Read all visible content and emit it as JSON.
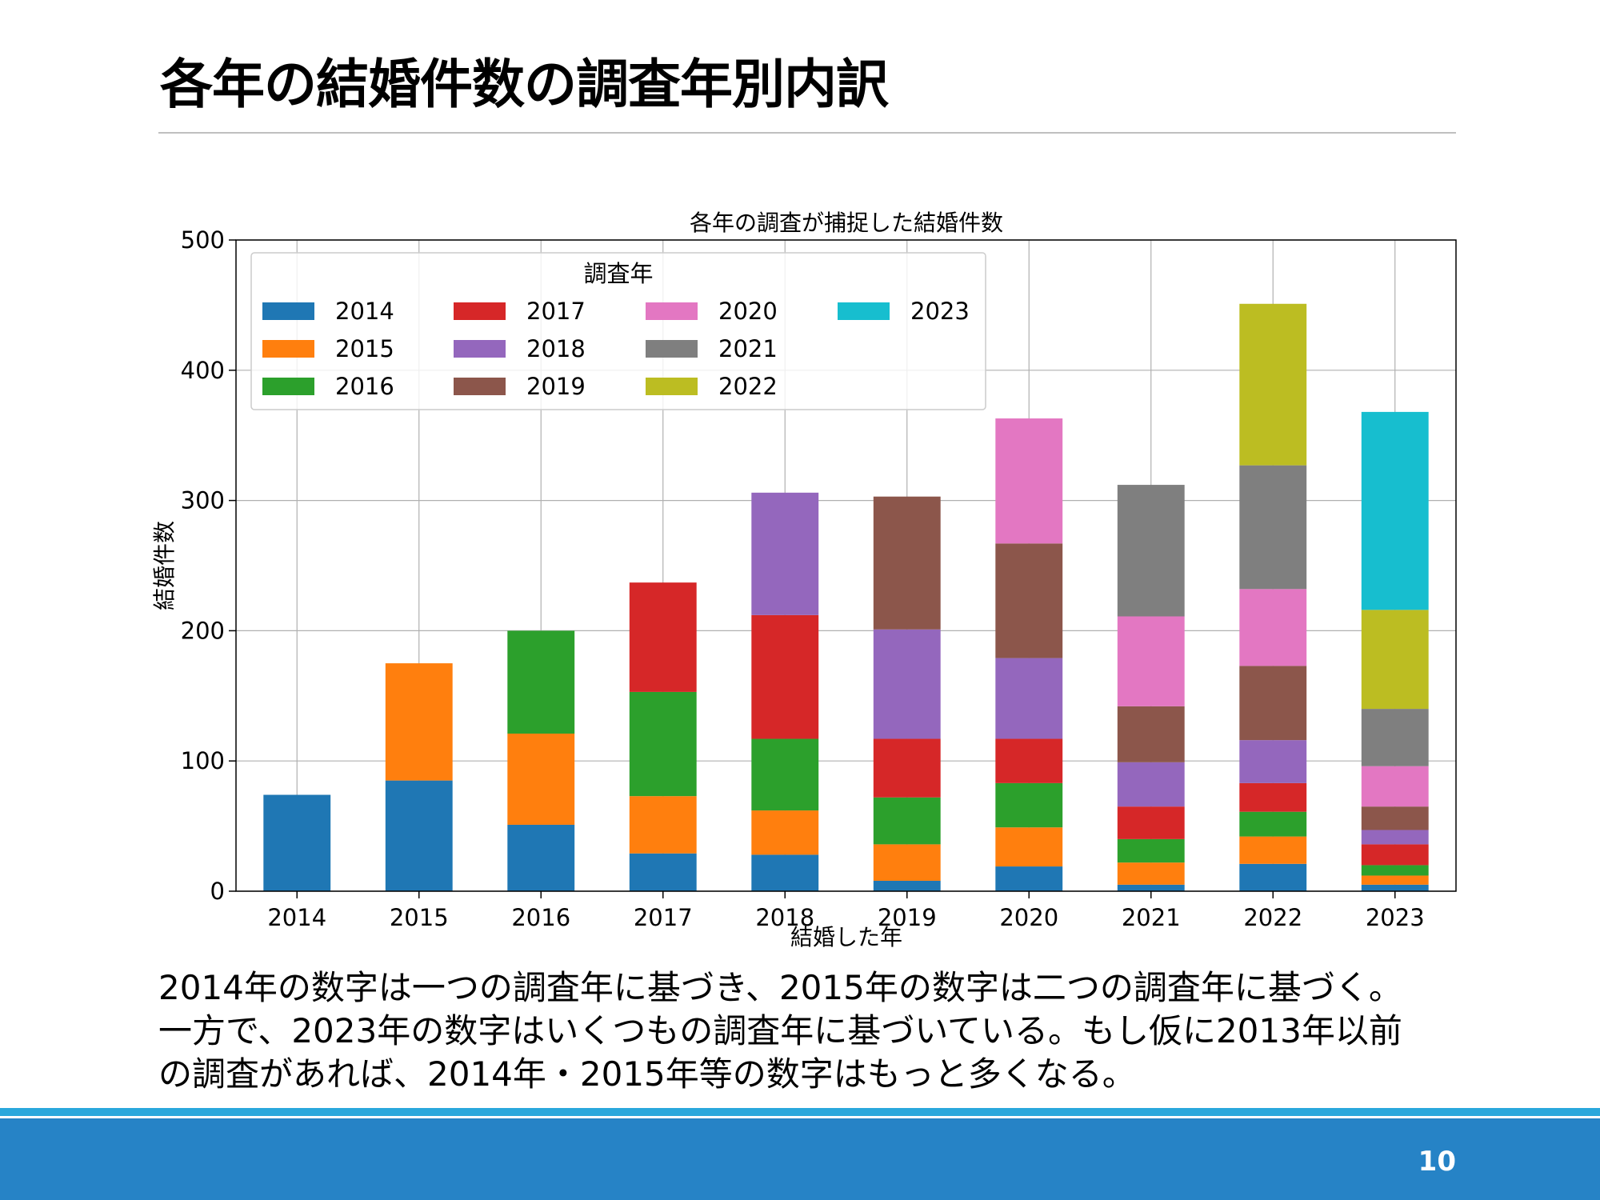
{
  "slide": {
    "title": "各年の結婚件数の調査年別内訳",
    "body_lines": [
      "2014年の数字は一つの調査年に基づき、2015年の数字は二つの調査年に基づく。",
      "一方で、2023年の数字はいくつもの調査年に基づいている。もし仮に2013年以前",
      "の調査があれば、2014年・2015年等の数字はもっと多くなる。"
    ],
    "page_number": "10",
    "footer_colors": {
      "stripe": "#2aa7dc",
      "bar": "#2683c6"
    }
  },
  "chart_data": {
    "type": "bar",
    "stacked": true,
    "title": "各年の調査が捕捉した結婚件数",
    "xlabel": "結婚した年",
    "ylabel": "結婚件数",
    "ylim": [
      0,
      500
    ],
    "yticks": [
      0,
      100,
      200,
      300,
      400,
      500
    ],
    "grid": true,
    "legend": {
      "title": "調査年",
      "placement": "top-left",
      "columns": 4
    },
    "categories": [
      "2014",
      "2015",
      "2016",
      "2017",
      "2018",
      "2019",
      "2020",
      "2021",
      "2022",
      "2023"
    ],
    "series": [
      {
        "name": "2014",
        "color": "#1f77b4",
        "values": [
          74,
          85,
          51,
          29,
          28,
          8,
          19,
          5,
          21,
          5
        ]
      },
      {
        "name": "2015",
        "color": "#ff7f0e",
        "values": [
          0,
          90,
          70,
          44,
          34,
          28,
          30,
          17,
          21,
          7
        ]
      },
      {
        "name": "2016",
        "color": "#2ca02c",
        "values": [
          0,
          0,
          79,
          80,
          55,
          36,
          34,
          18,
          19,
          8
        ]
      },
      {
        "name": "2017",
        "color": "#d62728",
        "values": [
          0,
          0,
          0,
          84,
          95,
          45,
          34,
          25,
          22,
          16
        ]
      },
      {
        "name": "2018",
        "color": "#9467bd",
        "values": [
          0,
          0,
          0,
          0,
          94,
          84,
          62,
          34,
          33,
          11
        ]
      },
      {
        "name": "2019",
        "color": "#8c564b",
        "values": [
          0,
          0,
          0,
          0,
          0,
          102,
          88,
          43,
          57,
          18
        ]
      },
      {
        "name": "2020",
        "color": "#e377c2",
        "values": [
          0,
          0,
          0,
          0,
          0,
          0,
          96,
          69,
          59,
          31
        ]
      },
      {
        "name": "2021",
        "color": "#7f7f7f",
        "values": [
          0,
          0,
          0,
          0,
          0,
          0,
          0,
          101,
          95,
          44
        ]
      },
      {
        "name": "2022",
        "color": "#bcbd22",
        "values": [
          0,
          0,
          0,
          0,
          0,
          0,
          0,
          0,
          124,
          76
        ]
      },
      {
        "name": "2023",
        "color": "#17becf",
        "values": [
          0,
          0,
          0,
          0,
          0,
          0,
          0,
          0,
          0,
          152
        ]
      }
    ]
  }
}
